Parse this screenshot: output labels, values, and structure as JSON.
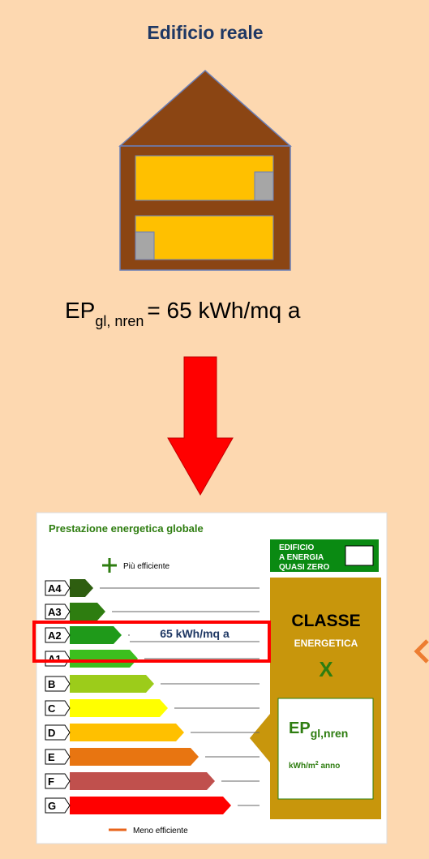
{
  "title": "Edificio reale",
  "formula": {
    "main": "EP",
    "sub": "gl, nren",
    "rest": "= 65 kWh/mq a"
  },
  "label": {
    "title": "Prestazione energetica globale",
    "more": "Più efficiente",
    "less": "Meno efficiente",
    "classes": [
      "A4",
      "A3",
      "A2",
      "A1",
      "B",
      "C",
      "D",
      "E",
      "F",
      "G"
    ],
    "value": "65 kWh/mq a",
    "nzeb": [
      "EDIFICIO",
      "A ENERGIA",
      "QUASI ZERO"
    ],
    "classe": "CLASSE",
    "energetica": "ENERGETICA",
    "x": "X",
    "ep": "EP",
    "ep_sub": "gl,nren",
    "unit": "kWh/m",
    "unit_sup": "2",
    "unit_rest": " anno"
  }
}
